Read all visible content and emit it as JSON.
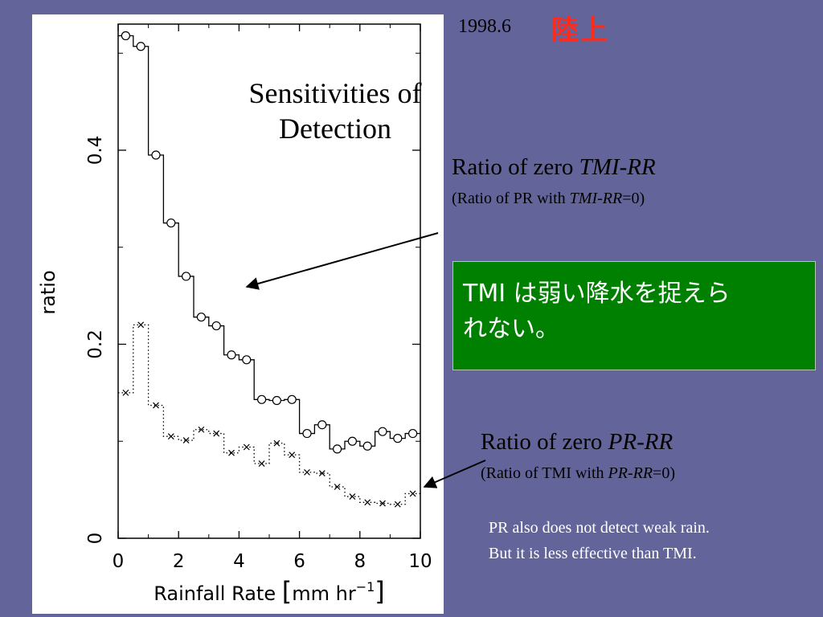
{
  "header": {
    "date": "1998.6",
    "region": "陸上"
  },
  "chart_data": {
    "type": "line",
    "title_lines": [
      "Sensitivities of",
      "Detection"
    ],
    "xlabel_main": "Rainfall Rate ",
    "xlabel_unit": "mm hr",
    "xlabel_exp": "−1",
    "ylabel": "ratio",
    "xlim": [
      0,
      10
    ],
    "ylim": [
      0,
      0.53
    ],
    "x_ticks": [
      0,
      2,
      4,
      6,
      8,
      10
    ],
    "x_tick_labels": [
      "0",
      "2",
      "4",
      "6",
      "8",
      "10"
    ],
    "y_ticks": [
      0,
      0.2,
      0.4
    ],
    "y_tick_labels": [
      "0",
      "0.2",
      "0.4"
    ],
    "grid": false,
    "x": [
      0.25,
      0.75,
      1.25,
      1.75,
      2.25,
      2.75,
      3.25,
      3.75,
      4.25,
      4.75,
      5.25,
      5.75,
      6.25,
      6.75,
      7.25,
      7.75,
      8.25,
      8.75,
      9.25,
      9.75
    ],
    "series": [
      {
        "label": "Ratio of zero TMI-RR",
        "marker": "circle",
        "step_style": "solid",
        "values": [
          0.518,
          0.507,
          0.395,
          0.325,
          0.27,
          0.228,
          0.219,
          0.189,
          0.184,
          0.143,
          0.142,
          0.143,
          0.108,
          0.117,
          0.092,
          0.1,
          0.095,
          0.11,
          0.103,
          0.108
        ]
      },
      {
        "label": "Ratio of zero PR-RR",
        "marker": "x",
        "step_style": "dotted",
        "values": [
          0.15,
          0.22,
          0.137,
          0.105,
          0.101,
          0.112,
          0.108,
          0.088,
          0.094,
          0.077,
          0.098,
          0.086,
          0.068,
          0.067,
          0.053,
          0.043,
          0.037,
          0.036,
          0.035,
          0.046
        ]
      }
    ]
  },
  "annotations": {
    "tmi": {
      "title_plain": "Ratio of zero ",
      "title_italic": "TMI-RR",
      "sub_plain_1": "(Ratio of PR with ",
      "sub_italic": "TMI-RR",
      "sub_plain_2": "=0)"
    },
    "pr": {
      "title_plain": "Ratio of zero ",
      "title_italic": "PR-RR",
      "sub_plain_1": "(Ratio of TMI with ",
      "sub_italic": "PR-RR",
      "sub_plain_2": "=0)"
    }
  },
  "callout": {
    "line1": "TMI は弱い降水を捉えら",
    "line2": "れない。"
  },
  "notes": {
    "line1": "PR also does not detect weak rain.",
    "line2": "But it is less effective than TMI."
  },
  "colors": {
    "background": "#63659a",
    "panel": "#ffffff",
    "callout_box": "#008000",
    "region_text": "#ff2a1a"
  }
}
